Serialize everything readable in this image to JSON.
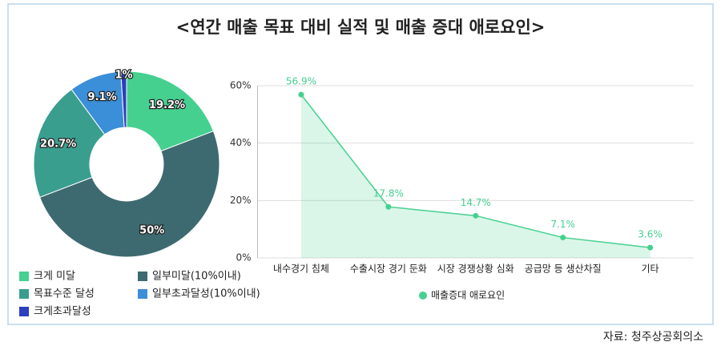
{
  "title": "<연간 매출 목표 대비 실적 및 매출 증대 애로요인>",
  "source": "자료: 청주상공회의소",
  "chart_data": [
    {
      "type": "donut",
      "categories": [
        "크게 미달",
        "일부미달(10%이내)",
        "목표수준 달성",
        "일부초과달성(10%이내)",
        "크게초과달성"
      ],
      "values": [
        19.2,
        50,
        20.7,
        9.1,
        1
      ],
      "value_labels": [
        "19.2%",
        "50%",
        "20.7%",
        "9.1%",
        "1%"
      ],
      "colors": [
        "#45d08f",
        "#3d6a70",
        "#3a9e8f",
        "#3b8ed8",
        "#2b3fc0"
      ]
    },
    {
      "type": "area-line",
      "categories": [
        "내수경기 침체",
        "수출시장 경기 둔화",
        "시장 경쟁상황 심화",
        "공급망 등 생산차질",
        "기타"
      ],
      "series": [
        {
          "name": "매출증대 애로요인",
          "color": "#45d08f",
          "values": [
            56.9,
            17.8,
            14.7,
            7.1,
            3.6
          ],
          "value_labels": [
            "56.9%",
            "17.8%",
            "14.7%",
            "7.1%",
            "3.6%"
          ]
        }
      ],
      "ylim": [
        0,
        60
      ],
      "yticks": [
        {
          "value": 0,
          "label": "0%"
        },
        {
          "value": 20,
          "label": "20%"
        },
        {
          "value": 40,
          "label": "40%"
        },
        {
          "value": 60,
          "label": "60%"
        }
      ],
      "grid": true,
      "legend": "bottom"
    }
  ]
}
